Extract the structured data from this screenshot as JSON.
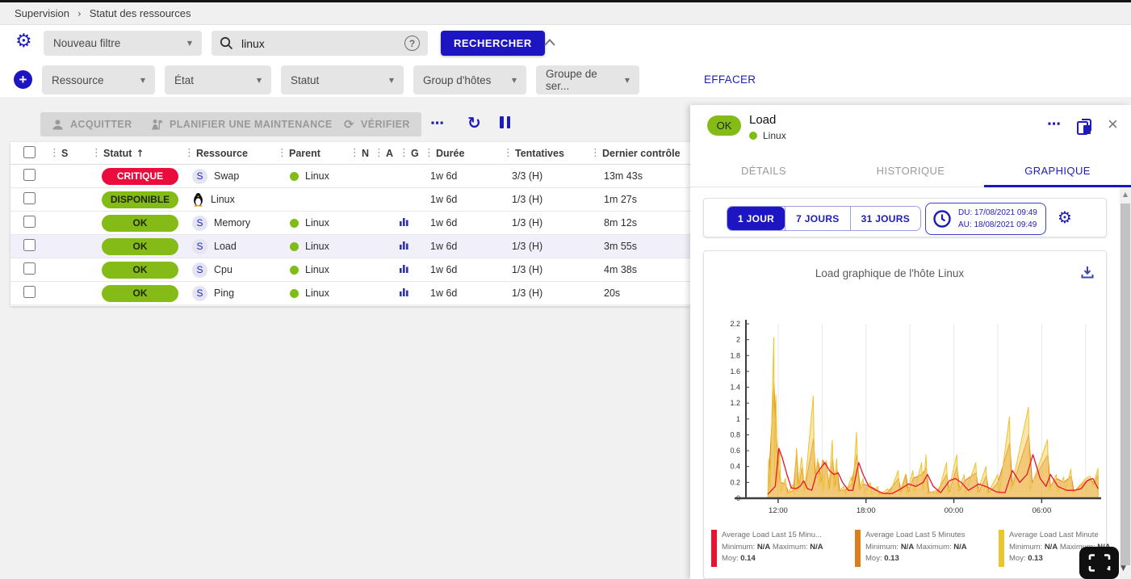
{
  "breadcrumb": {
    "items": [
      "Supervision",
      "Statut des ressources"
    ]
  },
  "filters": {
    "saved_filter": {
      "value": "Nouveau filtre"
    },
    "search": {
      "value": "linux"
    },
    "search_button": "RECHERCHER",
    "criterias": [
      {
        "label": "Ressource"
      },
      {
        "label": "État"
      },
      {
        "label": "Statut"
      },
      {
        "label": "Group d'hôtes"
      },
      {
        "label": "Groupe de ser..."
      }
    ],
    "clear_button": "EFFACER"
  },
  "toolbar": {
    "acknowledge": "ACQUITTER",
    "downtime": "PLANIFIER UNE MAINTENANCE",
    "check": "VÉRIFIER"
  },
  "table": {
    "columns": [
      "S",
      "Statut",
      "Ressource",
      "Parent",
      "N",
      "A",
      "G",
      "Durée",
      "Tentatives",
      "Dernier contrôle"
    ],
    "sorted_column": "Statut",
    "rows": [
      {
        "type": "S",
        "status": "CRITIQUE",
        "status_key": "critical",
        "resource": "Swap",
        "parent": "Linux",
        "graph": false,
        "duration": "1w 6d",
        "tries": "3/3 (H)",
        "last_check": "13m 43s",
        "selected": false
      },
      {
        "type": "H",
        "status": "DISPONIBLE",
        "status_key": "up",
        "resource": "Linux",
        "parent": null,
        "graph": false,
        "duration": "1w 6d",
        "tries": "1/3 (H)",
        "last_check": "1m 27s",
        "selected": false
      },
      {
        "type": "S",
        "status": "OK",
        "status_key": "ok",
        "resource": "Memory",
        "parent": "Linux",
        "graph": true,
        "duration": "1w 6d",
        "tries": "1/3 (H)",
        "last_check": "8m 12s",
        "selected": false
      },
      {
        "type": "S",
        "status": "OK",
        "status_key": "ok",
        "resource": "Load",
        "parent": "Linux",
        "graph": true,
        "duration": "1w 6d",
        "tries": "1/3 (H)",
        "last_check": "3m 55s",
        "selected": true
      },
      {
        "type": "S",
        "status": "OK",
        "status_key": "ok",
        "resource": "Cpu",
        "parent": "Linux",
        "graph": true,
        "duration": "1w 6d",
        "tries": "1/3 (H)",
        "last_check": "4m 38s",
        "selected": false
      },
      {
        "type": "S",
        "status": "OK",
        "status_key": "ok",
        "resource": "Ping",
        "parent": "Linux",
        "graph": true,
        "duration": "1w 6d",
        "tries": "1/3 (H)",
        "last_check": "20s",
        "selected": false
      }
    ]
  },
  "panel": {
    "status": "OK",
    "title": "Load",
    "host": "Linux",
    "tabs": [
      {
        "label": "DÉTAILS",
        "active": false
      },
      {
        "label": "HISTORIQUE",
        "active": false
      },
      {
        "label": "GRAPHIQUE",
        "active": true
      }
    ],
    "ranges": [
      {
        "label": "1 JOUR",
        "active": true
      },
      {
        "label": "7 JOURS",
        "active": false
      },
      {
        "label": "31 JOURS",
        "active": false
      }
    ],
    "period": {
      "from_line": "DU: 17/08/2021 09:49",
      "to_line": "AU: 18/08/2021 09:49"
    }
  },
  "chart_data": {
    "type": "area",
    "title": "Load graphique de l'hôte Linux",
    "xlabel": "",
    "ylabel": "",
    "ylim": [
      0,
      2.2
    ],
    "xlim": [
      9.8,
      33.95
    ],
    "yticks": [
      0,
      0.2,
      0.4,
      0.6,
      0.8,
      1,
      1.2,
      1.4,
      1.6,
      1.8,
      2,
      2.2
    ],
    "xticks": [
      {
        "t": 12,
        "label": "12:00"
      },
      {
        "t": 18,
        "label": "18:00"
      },
      {
        "t": 24,
        "label": "00:00"
      },
      {
        "t": 30,
        "label": "06:00"
      }
    ],
    "grid_hours": [
      12,
      15,
      18,
      21,
      24,
      27,
      30,
      33
    ],
    "legend_labels": {
      "min": "Minimum:",
      "max": "Maximum:",
      "avg": "Moy:"
    },
    "series": [
      {
        "name": "Average Load Last 15 Minu...",
        "color": "#e8132f",
        "kind": "line",
        "min": "N/A",
        "max": "N/A",
        "moy": "0.14",
        "points": [
          [
            11.3,
            0.05
          ],
          [
            11.8,
            0.15
          ],
          [
            12.05,
            0.63
          ],
          [
            12.3,
            0.5
          ],
          [
            12.6,
            0.3
          ],
          [
            12.9,
            0.13
          ],
          [
            13.2,
            0.12
          ],
          [
            13.5,
            0.15
          ],
          [
            13.75,
            0.22
          ],
          [
            14.0,
            0.12
          ],
          [
            14.3,
            0.1
          ],
          [
            14.6,
            0.3
          ],
          [
            14.9,
            0.38
          ],
          [
            15.2,
            0.45
          ],
          [
            15.5,
            0.35
          ],
          [
            15.8,
            0.3
          ],
          [
            16.1,
            0.32
          ],
          [
            16.4,
            0.2
          ],
          [
            16.8,
            0.1
          ],
          [
            17.1,
            0.1
          ],
          [
            17.5,
            0.45
          ],
          [
            17.8,
            0.3
          ],
          [
            18.2,
            0.15
          ],
          [
            18.7,
            0.1
          ],
          [
            19.2,
            0.06
          ],
          [
            19.8,
            0.06
          ],
          [
            20.4,
            0.12
          ],
          [
            20.9,
            0.18
          ],
          [
            21.4,
            0.15
          ],
          [
            21.9,
            0.2
          ],
          [
            22.2,
            0.3
          ],
          [
            22.6,
            0.15
          ],
          [
            23.1,
            0.07
          ],
          [
            23.7,
            0.22
          ],
          [
            24.1,
            0.25
          ],
          [
            24.5,
            0.2
          ],
          [
            25.0,
            0.1
          ],
          [
            25.7,
            0.18
          ],
          [
            26.3,
            0.14
          ],
          [
            26.9,
            0.08
          ],
          [
            27.5,
            0.07
          ],
          [
            28.0,
            0.35
          ],
          [
            28.5,
            0.2
          ],
          [
            29.0,
            0.3
          ],
          [
            29.4,
            0.55
          ],
          [
            29.9,
            0.25
          ],
          [
            30.3,
            0.15
          ],
          [
            30.6,
            0.3
          ],
          [
            31.1,
            0.15
          ],
          [
            31.7,
            0.1
          ],
          [
            32.2,
            0.1
          ],
          [
            32.7,
            0.12
          ],
          [
            33.1,
            0.22
          ],
          [
            33.5,
            0.25
          ],
          [
            33.85,
            0.12
          ]
        ]
      },
      {
        "name": "Average Load Last 5 Minutes",
        "color": "#dd7e1d",
        "kind": "area",
        "fill": "rgba(228,148,64,0.55)",
        "min": "N/A",
        "max": "N/A",
        "moy": "0.13",
        "points": [
          [
            11.3,
            0.04
          ],
          [
            11.72,
            1.45
          ],
          [
            11.85,
            0.9
          ],
          [
            12.0,
            0.45
          ],
          [
            12.15,
            0.2
          ],
          [
            12.5,
            0.18
          ],
          [
            12.7,
            0.07
          ],
          [
            13.05,
            0.1
          ],
          [
            13.27,
            0.6
          ],
          [
            13.4,
            0.12
          ],
          [
            13.62,
            0.38
          ],
          [
            13.8,
            0.1
          ],
          [
            14.42,
            0.75
          ],
          [
            14.55,
            0.3
          ],
          [
            14.75,
            0.45
          ],
          [
            14.95,
            0.2
          ],
          [
            15.05,
            0.48
          ],
          [
            15.32,
            0.4
          ],
          [
            15.5,
            0.12
          ],
          [
            15.72,
            0.5
          ],
          [
            15.9,
            0.15
          ],
          [
            16.02,
            0.38
          ],
          [
            16.2,
            0.1
          ],
          [
            16.55,
            0.1
          ],
          [
            17.02,
            0.18
          ],
          [
            17.37,
            0.55
          ],
          [
            17.6,
            0.12
          ],
          [
            17.82,
            0.18
          ],
          [
            18.32,
            0.15
          ],
          [
            18.82,
            0.1
          ],
          [
            19.0,
            0.05
          ],
          [
            19.52,
            0.08
          ],
          [
            20.22,
            0.25
          ],
          [
            20.4,
            0.08
          ],
          [
            20.72,
            0.3
          ],
          [
            20.9,
            0.08
          ],
          [
            21.22,
            0.25
          ],
          [
            21.82,
            0.3
          ],
          [
            22.12,
            0.38
          ],
          [
            22.3,
            0.08
          ],
          [
            22.82,
            0.07
          ],
          [
            23.52,
            0.3
          ],
          [
            23.7,
            0.08
          ],
          [
            24.22,
            0.4
          ],
          [
            24.4,
            0.1
          ],
          [
            24.72,
            0.22
          ],
          [
            25.52,
            0.32
          ],
          [
            25.7,
            0.08
          ],
          [
            26.22,
            0.28
          ],
          [
            26.4,
            0.07
          ],
          [
            27.02,
            0.2
          ],
          [
            27.82,
            0.7
          ],
          [
            28.0,
            0.15
          ],
          [
            29.12,
            0.8
          ],
          [
            29.35,
            0.2
          ],
          [
            30.42,
            0.55
          ],
          [
            30.6,
            0.15
          ],
          [
            31.02,
            0.25
          ],
          [
            31.52,
            0.2
          ],
          [
            32.02,
            0.28
          ],
          [
            32.2,
            0.08
          ],
          [
            32.9,
            0.2
          ],
          [
            33.3,
            0.25
          ],
          [
            33.6,
            0.18
          ],
          [
            33.85,
            0.3
          ]
        ]
      },
      {
        "name": "Average Load Last Minute",
        "color": "#edc32f",
        "kind": "area",
        "fill": "rgba(242,205,92,0.5)",
        "min": "N/A",
        "max": "N/A",
        "moy": "0.13",
        "points": [
          [
            11.3,
            0.03
          ],
          [
            11.35,
            0.5
          ],
          [
            11.45,
            0.08
          ],
          [
            11.7,
            2.03
          ],
          [
            11.75,
            0.3
          ],
          [
            11.85,
            1.3
          ],
          [
            11.95,
            0.15
          ],
          [
            12.1,
            0.6
          ],
          [
            12.2,
            0.08
          ],
          [
            12.5,
            0.25
          ],
          [
            12.6,
            0.05
          ],
          [
            13.0,
            0.17
          ],
          [
            13.1,
            0.05
          ],
          [
            13.25,
            0.63
          ],
          [
            13.35,
            0.1
          ],
          [
            13.6,
            0.52
          ],
          [
            13.7,
            0.35
          ],
          [
            13.8,
            0.08
          ],
          [
            14.4,
            1.29
          ],
          [
            14.5,
            0.2
          ],
          [
            14.7,
            0.5
          ],
          [
            14.8,
            0.15
          ],
          [
            15.0,
            0.45
          ],
          [
            15.1,
            0.1
          ],
          [
            15.3,
            0.48
          ],
          [
            15.45,
            0.1
          ],
          [
            15.7,
            0.73
          ],
          [
            15.8,
            0.12
          ],
          [
            16.0,
            0.5
          ],
          [
            16.1,
            0.08
          ],
          [
            16.5,
            0.15
          ],
          [
            16.6,
            0.05
          ],
          [
            17.0,
            0.27
          ],
          [
            17.1,
            0.08
          ],
          [
            17.35,
            0.83
          ],
          [
            17.5,
            0.1
          ],
          [
            17.8,
            0.25
          ],
          [
            17.9,
            0.06
          ],
          [
            18.3,
            0.2
          ],
          [
            18.4,
            0.05
          ],
          [
            18.8,
            0.15
          ],
          [
            18.9,
            0.04
          ],
          [
            19.5,
            0.12
          ],
          [
            19.6,
            0.04
          ],
          [
            20.2,
            0.35
          ],
          [
            20.3,
            0.06
          ],
          [
            20.7,
            0.3
          ],
          [
            20.8,
            0.06
          ],
          [
            21.2,
            0.35
          ],
          [
            21.3,
            0.08
          ],
          [
            21.8,
            0.45
          ],
          [
            21.9,
            0.1
          ],
          [
            22.1,
            0.55
          ],
          [
            22.2,
            0.06
          ],
          [
            22.8,
            0.1
          ],
          [
            22.9,
            0.04
          ],
          [
            23.5,
            0.45
          ],
          [
            23.6,
            0.06
          ],
          [
            24.2,
            0.55
          ],
          [
            24.3,
            0.08
          ],
          [
            24.7,
            0.3
          ],
          [
            24.8,
            0.06
          ],
          [
            25.5,
            0.45
          ],
          [
            25.6,
            0.07
          ],
          [
            26.2,
            0.4
          ],
          [
            26.3,
            0.06
          ],
          [
            27.0,
            0.3
          ],
          [
            27.1,
            0.05
          ],
          [
            27.8,
            1.03
          ],
          [
            27.9,
            0.1
          ],
          [
            29.1,
            1.15
          ],
          [
            29.2,
            0.1
          ],
          [
            30.4,
            0.74
          ],
          [
            30.5,
            0.1
          ],
          [
            31.0,
            0.3
          ],
          [
            31.1,
            0.08
          ],
          [
            31.5,
            0.27
          ],
          [
            31.6,
            0.08
          ],
          [
            32.0,
            0.37
          ],
          [
            32.1,
            0.06
          ],
          [
            33.0,
            0.25
          ],
          [
            33.3,
            0.28
          ],
          [
            33.5,
            0.15
          ],
          [
            33.85,
            0.38
          ]
        ]
      }
    ]
  },
  "colors": {
    "accent": "#1e15c2",
    "critical": "#e90c3d",
    "success": "#84bb16",
    "selected_row": "#f0effa"
  },
  "status_styles": {
    "critical": {
      "bg": "#e90c3d",
      "fg": "#ffffff"
    },
    "up": {
      "bg": "#84bb16",
      "fg": "#1f2612"
    },
    "ok": {
      "bg": "#84bb16",
      "fg": "#1f2612"
    }
  }
}
